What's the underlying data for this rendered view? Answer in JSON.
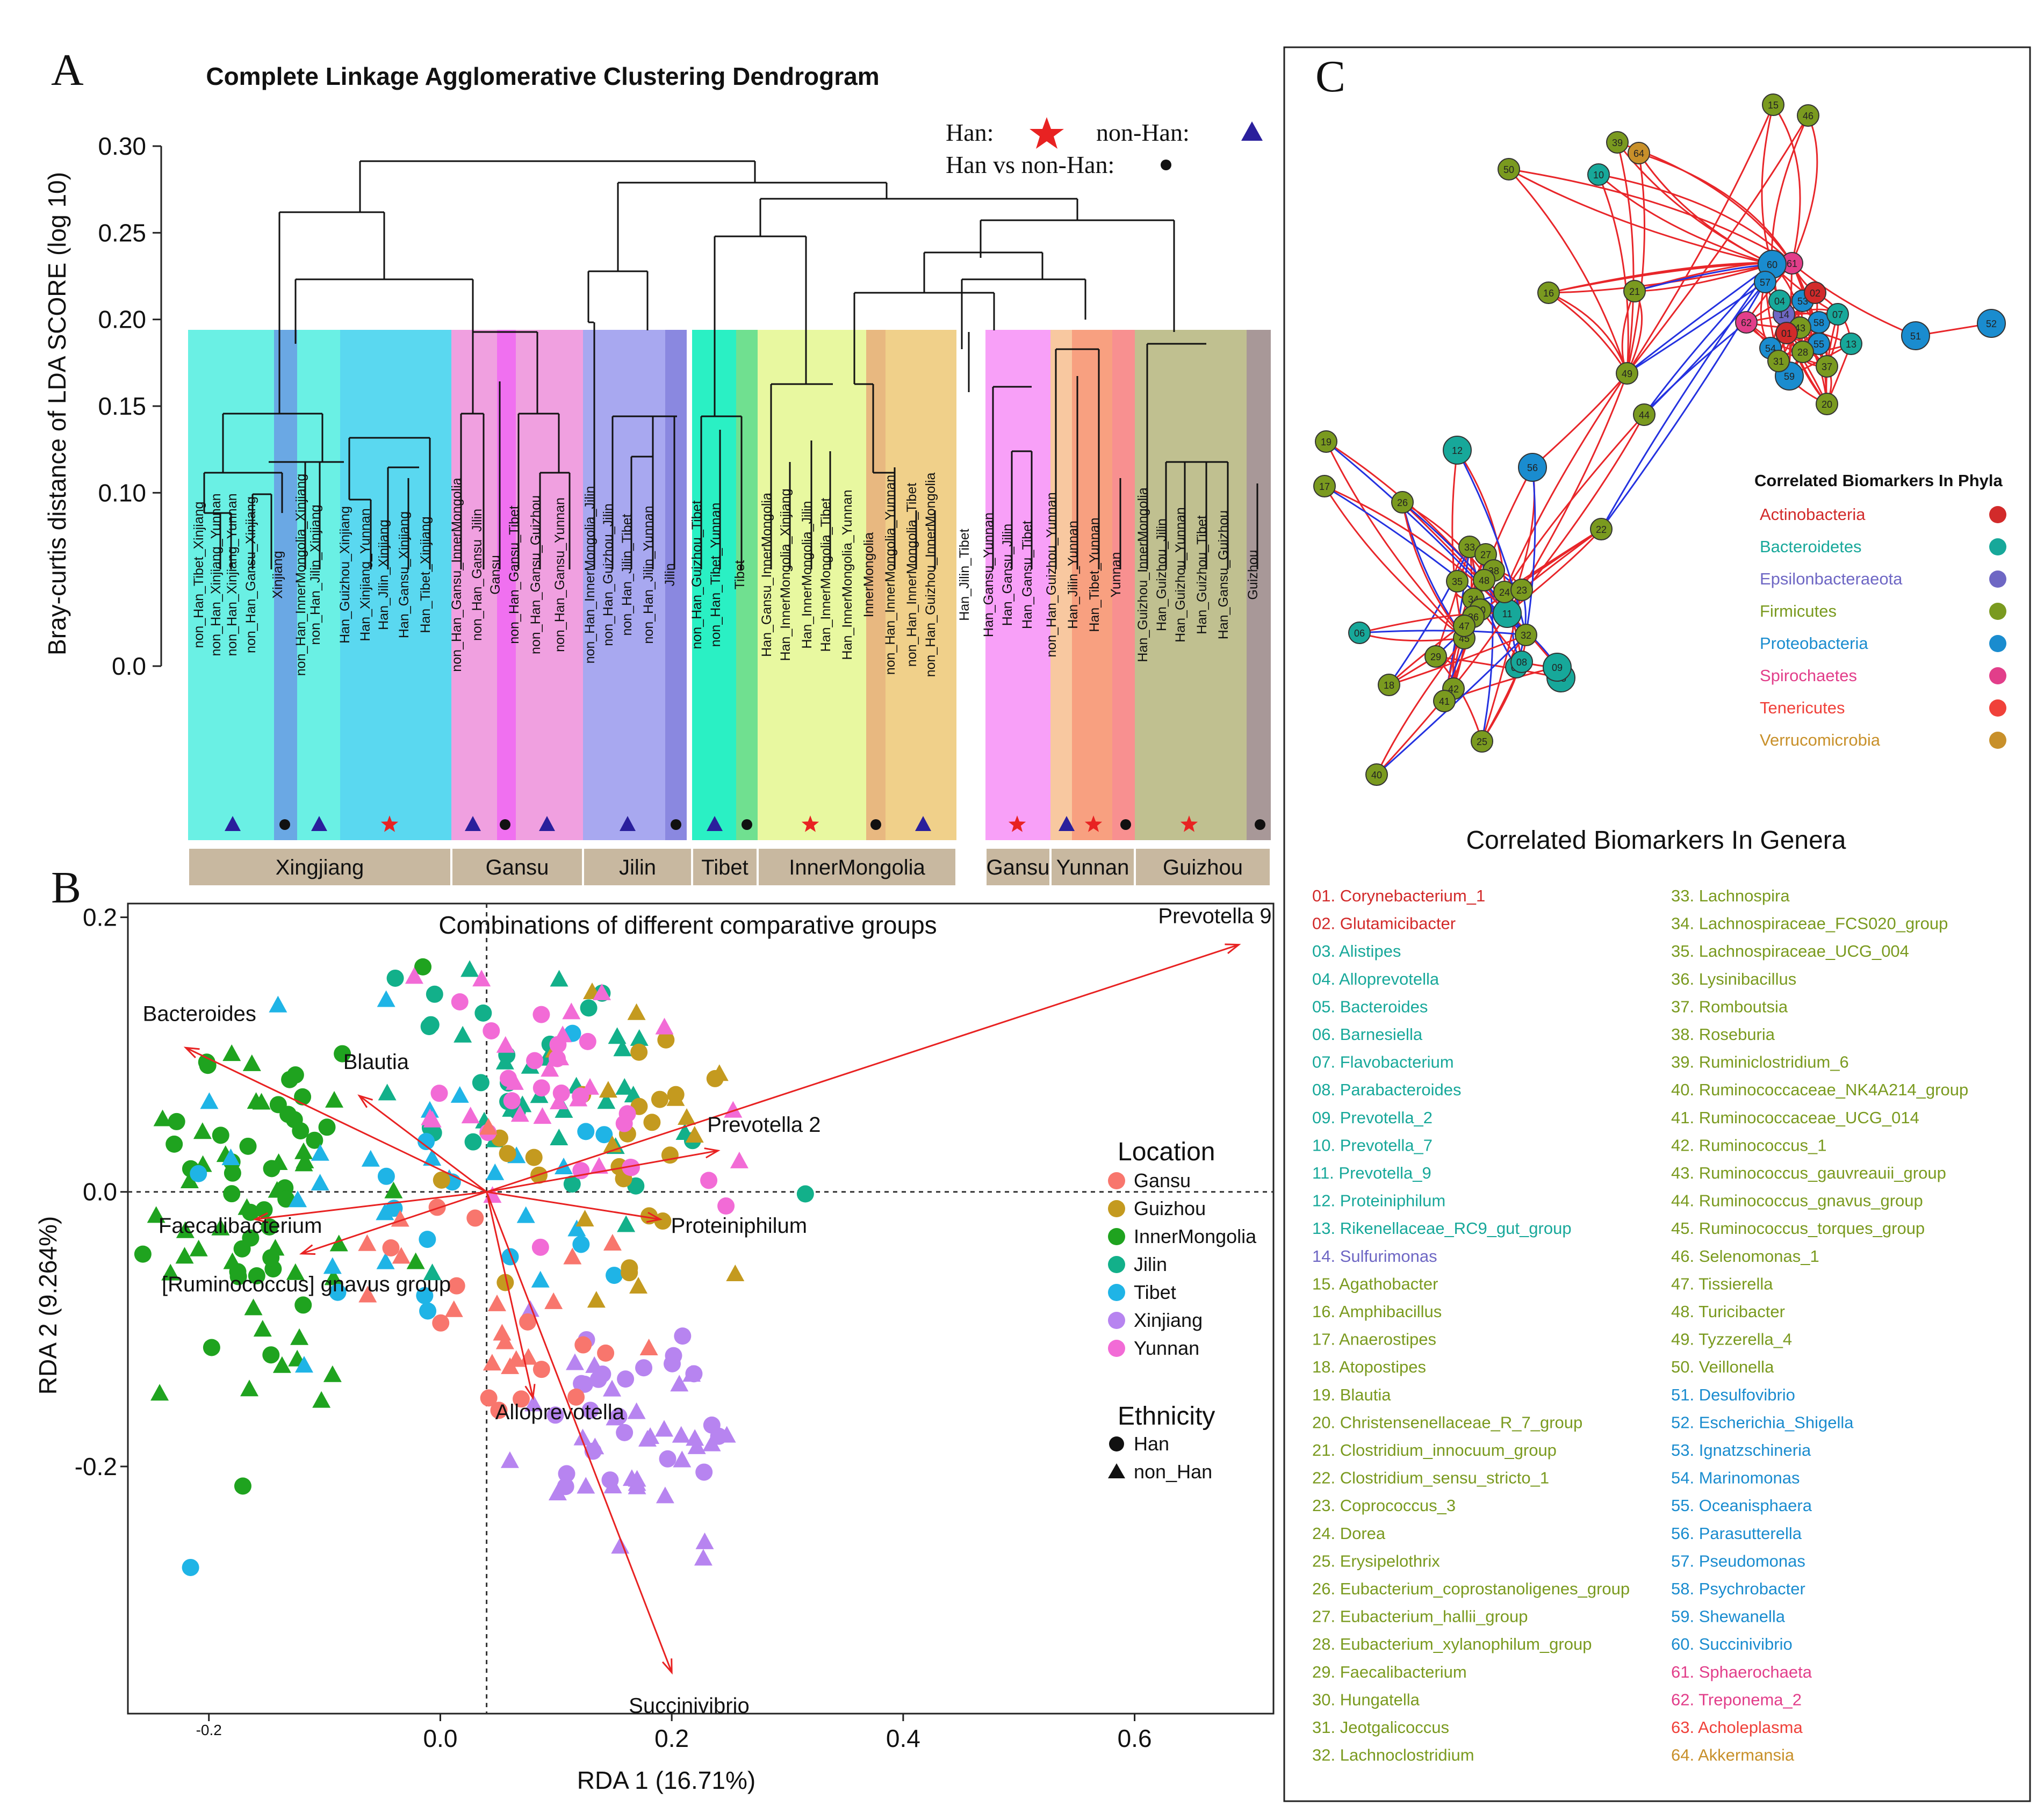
{
  "panelA": {
    "letter": "A",
    "title": "Complete Linkage Agglomerative Clustering Dendrogram",
    "ylabel": "Bray-curtis distance of LDA SCORE (log 10)",
    "yticks": [
      "0.30",
      "0.25",
      "0.20",
      "0.15",
      "0.10",
      "0.0"
    ],
    "legend": {
      "han": "Han:",
      "nonhan": "non-Han:",
      "vs": "Han vs non-Han:"
    },
    "leaves": [
      "non_Han_Tibet_Xinjiang",
      "non_Han_Xinjiang_Yunnan",
      "non_Han_Xinjiang_Yunnan",
      "non_Han_Gansu_Xinjiang",
      "Xinjiang",
      "non_Han_InnerMongolia_Xinjiang",
      "non_Han_Jilin_Xinjiang",
      "Han_Guizhou_Xinjiang",
      "Han_Xinjiang_Yunnan",
      "Han_Jilin_Xinjiang",
      "Han_Gansu_Xinjiang",
      "Han_Tibet_Xinjiang",
      "non_Han_Gansu_InnerMongolia",
      "non_Han_Gansu_Jilin",
      "Gansu",
      "non_Han_Gansu_Tibet",
      "non_Han_Gansu_Guizhou",
      "non_Han_Gansu_Yunnan",
      "non_Han_InnerMongolia_Jilin",
      "non_Han_Guizhou_Jilin",
      "non_Han_Jilin_Tibet",
      "non_Han_Jilin_Yunnan",
      "Jilin",
      "non_Han_Guizhou_Tibet",
      "non_Han_Tibet_Yunnan",
      "Tibet",
      "Han_Gansu_InnerMongolia",
      "Han_InnerMongolia_Xinjiang",
      "Han_InnerMongolia_Jilin",
      "Han_InnerMongolia_Tibet",
      "Han_InnerMongolia_Yunnan",
      "InnerMongolia",
      "non_Han_InnerMongolia_Yunnan",
      "non_Han_InnerMongolia_Tibet",
      "non_Han_Guizhou_InnerMongolia",
      "Han_Jilin_Tibet",
      "Han_Gansu_Yunnan",
      "Han_Gansu_Jilin",
      "Han_Gansu_Tibet",
      "non_Han_Guizhou_Yunnan",
      "Han_Jilin_Yunnan",
      "Han_Tibet_Yunnan",
      "Yunnan",
      "Han_Guizhou_InnerMongolia",
      "Han_Guizhou_Jilin",
      "Han_Guizhou_Yunnan",
      "Han_Guizhou_Tibet",
      "Han_Gansu_Guizhou",
      "Guizhou"
    ],
    "groups": [
      "Xingjiang",
      "Gansu",
      "Jilin",
      "Tibet",
      "InnerMongolia",
      "Gansu",
      "Yunnan",
      "Guizhou"
    ]
  },
  "panelB": {
    "letter": "B",
    "chart_data": {
      "type": "scatter",
      "title": "Combinations of different comparative groups",
      "xlabel": "RDA 1 (16.71%)",
      "ylabel": "RDA 2 (9.264%)",
      "xlim": [
        -0.27,
        0.72
      ],
      "ylim": [
        -0.38,
        0.21
      ],
      "xticks": [
        "-0.2",
        "0.0",
        "0.2",
        "0.4",
        "0.6"
      ],
      "yticks": [
        "0.2",
        "0.0",
        "-0.2"
      ],
      "arrows": [
        {
          "name": "Prevotella 9",
          "x": 0.69,
          "y": 0.18
        },
        {
          "name": "Bacteroides",
          "x": -0.22,
          "y": 0.105
        },
        {
          "name": "Blautia",
          "x": -0.07,
          "y": 0.07
        },
        {
          "name": "Prevotella 2",
          "x": 0.24,
          "y": 0.03
        },
        {
          "name": "Proteiniphilum",
          "x": 0.19,
          "y": -0.02
        },
        {
          "name": "Faecalibacterium",
          "x": -0.16,
          "y": -0.02
        },
        {
          "name": "[Ruminococcus] gnavus group",
          "x": -0.12,
          "y": -0.045
        },
        {
          "name": "Alloprevotella",
          "x": 0.08,
          "y": -0.15
        },
        {
          "name": "Succinivibrio",
          "x": 0.2,
          "y": -0.35
        }
      ],
      "legend_location": {
        "title": "Location",
        "items": [
          {
            "name": "Gansu",
            "color": "#f8766d"
          },
          {
            "name": "Guizhou",
            "color": "#c49a1f"
          },
          {
            "name": "InnerMongolia",
            "color": "#1fa31f"
          },
          {
            "name": "Jilin",
            "color": "#12b08a"
          },
          {
            "name": "Tibet",
            "color": "#1fb4e6"
          },
          {
            "name": "Xinjiang",
            "color": "#b784f0"
          },
          {
            "name": "Yunnan",
            "color": "#f26bd6"
          }
        ]
      },
      "legend_ethnicity": {
        "title": "Ethnicity",
        "items": [
          "Han",
          "non_Han"
        ]
      },
      "clusters": [
        {
          "group": "InnerMongolia",
          "cx": -0.16,
          "cy": 0.0,
          "sx": 0.05,
          "sy": 0.07,
          "n": 80
        },
        {
          "group": "Jilin",
          "cx": 0.1,
          "cy": 0.07,
          "sx": 0.09,
          "sy": 0.06,
          "n": 45
        },
        {
          "group": "Tibet",
          "cx": -0.03,
          "cy": 0.02,
          "sx": 0.12,
          "sy": 0.07,
          "n": 40
        },
        {
          "group": "Guizhou",
          "cx": 0.15,
          "cy": 0.05,
          "sx": 0.06,
          "sy": 0.05,
          "n": 35
        },
        {
          "group": "Yunnan",
          "cx": 0.1,
          "cy": 0.07,
          "sx": 0.06,
          "sy": 0.05,
          "n": 45
        },
        {
          "group": "Xinjiang",
          "cx": 0.17,
          "cy": -0.18,
          "sx": 0.05,
          "sy": 0.04,
          "n": 55
        },
        {
          "group": "Gansu",
          "cx": 0.05,
          "cy": -0.08,
          "sx": 0.07,
          "sy": 0.05,
          "n": 30
        }
      ]
    }
  },
  "panelC": {
    "letter": "C",
    "network_legend": {
      "title": "Correlated Biomarkers In Phyla",
      "items": [
        {
          "name": "Actinobacteria",
          "color": "#d22a2a"
        },
        {
          "name": "Bacteroidetes",
          "color": "#17a89a"
        },
        {
          "name": "Epsilonbacteraeota",
          "color": "#6e67c4"
        },
        {
          "name": "Firmicutes",
          "color": "#7a9a1f"
        },
        {
          "name": "Proteobacteria",
          "color": "#1a8ccf"
        },
        {
          "name": "Spirochaetes",
          "color": "#e23e8a"
        },
        {
          "name": "Tenericutes",
          "color": "#f0413a"
        },
        {
          "name": "Verrucomicrobia",
          "color": "#c8902a"
        }
      ]
    },
    "genera_title": "Correlated Biomarkers In Genera",
    "genera": [
      {
        "t": "01. Corynebacterium_1",
        "c": "#d22a2a"
      },
      {
        "t": "02. Glutamicibacter",
        "c": "#d22a2a"
      },
      {
        "t": "03. Alistipes",
        "c": "#17a89a"
      },
      {
        "t": "04. Alloprevotella",
        "c": "#17a89a"
      },
      {
        "t": "05. Bacteroides",
        "c": "#17a89a"
      },
      {
        "t": "06. Barnesiella",
        "c": "#17a89a"
      },
      {
        "t": "07. Flavobacterium",
        "c": "#17a89a"
      },
      {
        "t": "08. Parabacteroides",
        "c": "#17a89a"
      },
      {
        "t": "09. Prevotella_2",
        "c": "#17a89a"
      },
      {
        "t": "10. Prevotella_7",
        "c": "#17a89a"
      },
      {
        "t": "11. Prevotella_9",
        "c": "#17a89a"
      },
      {
        "t": "12. Proteiniphilum",
        "c": "#17a89a"
      },
      {
        "t": "13. Rikenellaceae_RC9_gut_group",
        "c": "#17a89a"
      },
      {
        "t": "14. Sulfurimonas",
        "c": "#6e67c4"
      },
      {
        "t": "15. Agathobacter",
        "c": "#7a9a1f"
      },
      {
        "t": "16. Amphibacillus",
        "c": "#7a9a1f"
      },
      {
        "t": "17. Anaerostipes",
        "c": "#7a9a1f"
      },
      {
        "t": "18. Atopostipes",
        "c": "#7a9a1f"
      },
      {
        "t": "19. Blautia",
        "c": "#7a9a1f"
      },
      {
        "t": "20. Christensenellaceae_R_7_group",
        "c": "#7a9a1f"
      },
      {
        "t": "21. Clostridium_innocuum_group",
        "c": "#7a9a1f"
      },
      {
        "t": "22. Clostridium_sensu_stricto_1",
        "c": "#7a9a1f"
      },
      {
        "t": "23. Coprococcus_3",
        "c": "#7a9a1f"
      },
      {
        "t": "24. Dorea",
        "c": "#7a9a1f"
      },
      {
        "t": "25. Erysipelothrix",
        "c": "#7a9a1f"
      },
      {
        "t": "26. Eubacterium_coprostanoligenes_group",
        "c": "#7a9a1f"
      },
      {
        "t": "27. Eubacterium_hallii_group",
        "c": "#7a9a1f"
      },
      {
        "t": "28. Eubacterium_xylanophilum_group",
        "c": "#7a9a1f"
      },
      {
        "t": "29. Faecalibacterium",
        "c": "#7a9a1f"
      },
      {
        "t": "30. Hungatella",
        "c": "#7a9a1f"
      },
      {
        "t": "31. Jeotgalicoccus",
        "c": "#7a9a1f"
      },
      {
        "t": "32. Lachnoclostridium",
        "c": "#7a9a1f"
      },
      {
        "t": "33. Lachnospira",
        "c": "#7a9a1f"
      },
      {
        "t": "34. Lachnospiraceae_FCS020_group",
        "c": "#7a9a1f"
      },
      {
        "t": "35. Lachnospiraceae_UCG_004",
        "c": "#7a9a1f"
      },
      {
        "t": "36. Lysinibacillus",
        "c": "#7a9a1f"
      },
      {
        "t": "37. Romboutsia",
        "c": "#7a9a1f"
      },
      {
        "t": "38. Roseburia",
        "c": "#7a9a1f"
      },
      {
        "t": "39. Ruminiclostridium_6",
        "c": "#7a9a1f"
      },
      {
        "t": "40. Ruminococcaceae_NK4A214_group",
        "c": "#7a9a1f"
      },
      {
        "t": "41. Ruminococcaceae_UCG_014",
        "c": "#7a9a1f"
      },
      {
        "t": "42. Ruminococcus_1",
        "c": "#7a9a1f"
      },
      {
        "t": "43. Ruminococcus_gauvreauii_group",
        "c": "#7a9a1f"
      },
      {
        "t": "44. Ruminococcus_gnavus_group",
        "c": "#7a9a1f"
      },
      {
        "t": "45. Ruminococcus_torques_group",
        "c": "#7a9a1f"
      },
      {
        "t": "46. Selenomonas_1",
        "c": "#7a9a1f"
      },
      {
        "t": "47. Tissierella",
        "c": "#7a9a1f"
      },
      {
        "t": "48. Turicibacter",
        "c": "#7a9a1f"
      },
      {
        "t": "49. Tyzzerella_4",
        "c": "#7a9a1f"
      },
      {
        "t": "50. Veillonella",
        "c": "#7a9a1f"
      },
      {
        "t": "51. Desulfovibrio",
        "c": "#1a8ccf"
      },
      {
        "t": "52. Escherichia_Shigella",
        "c": "#1a8ccf"
      },
      {
        "t": "53. Ignatzschineria",
        "c": "#1a8ccf"
      },
      {
        "t": "54. Marinomonas",
        "c": "#1a8ccf"
      },
      {
        "t": "55. Oceanisphaera",
        "c": "#1a8ccf"
      },
      {
        "t": "56. Parasutterella",
        "c": "#1a8ccf"
      },
      {
        "t": "57. Pseudomonas",
        "c": "#1a8ccf"
      },
      {
        "t": "58. Psychrobacter",
        "c": "#1a8ccf"
      },
      {
        "t": "59. Shewanella",
        "c": "#1a8ccf"
      },
      {
        "t": "60. Succinivibrio",
        "c": "#1a8ccf"
      },
      {
        "t": "61. Sphaerochaeta",
        "c": "#e23e8a"
      },
      {
        "t": "62. Treponema_2",
        "c": "#e23e8a"
      },
      {
        "t": "63. Acholeplasma",
        "c": "#f0413a"
      },
      {
        "t": "64. Akkermansia",
        "c": "#c8902a"
      }
    ],
    "nodes": [
      {
        "id": "15",
        "p": "F"
      },
      {
        "id": "46",
        "p": "F"
      },
      {
        "id": "39",
        "p": "F"
      },
      {
        "id": "64",
        "p": "V"
      },
      {
        "id": "50",
        "p": "F"
      },
      {
        "id": "10",
        "p": "B"
      },
      {
        "id": "16",
        "p": "F"
      },
      {
        "id": "21",
        "p": "F"
      },
      {
        "id": "61",
        "p": "S"
      },
      {
        "id": "60",
        "p": "P"
      },
      {
        "id": "52",
        "p": "P"
      },
      {
        "id": "51",
        "p": "P"
      },
      {
        "id": "49",
        "p": "F"
      },
      {
        "id": "44",
        "p": "F"
      },
      {
        "id": "56",
        "p": "P"
      },
      {
        "id": "12",
        "p": "B"
      },
      {
        "id": "19",
        "p": "F"
      },
      {
        "id": "17",
        "p": "F"
      },
      {
        "id": "22",
        "p": "F"
      },
      {
        "id": "06",
        "p": "B"
      },
      {
        "id": "26",
        "p": "F"
      },
      {
        "id": "40",
        "p": "F"
      },
      {
        "id": "11",
        "p": "B"
      },
      {
        "id": "03",
        "p": "B"
      },
      {
        "id": "05",
        "p": "B"
      },
      {
        "id": "09",
        "p": "B"
      },
      {
        "id": "08",
        "p": "B"
      },
      {
        "id": "42",
        "p": "F"
      },
      {
        "id": "45",
        "p": "F"
      },
      {
        "id": "33",
        "p": "F"
      },
      {
        "id": "27",
        "p": "F"
      },
      {
        "id": "32",
        "p": "F"
      },
      {
        "id": "29",
        "p": "F"
      },
      {
        "id": "24",
        "p": "F"
      },
      {
        "id": "38",
        "p": "F"
      },
      {
        "id": "23",
        "p": "F"
      },
      {
        "id": "41",
        "p": "F"
      },
      {
        "id": "34",
        "p": "F"
      },
      {
        "id": "30",
        "p": "F"
      },
      {
        "id": "36",
        "p": "F"
      },
      {
        "id": "35",
        "p": "F"
      },
      {
        "id": "18",
        "p": "F"
      },
      {
        "id": "25",
        "p": "F"
      },
      {
        "id": "47",
        "p": "F"
      },
      {
        "id": "48",
        "p": "F"
      },
      {
        "id": "57",
        "p": "P"
      },
      {
        "id": "53",
        "p": "P"
      },
      {
        "id": "58",
        "p": "P"
      },
      {
        "id": "55",
        "p": "P"
      },
      {
        "id": "59",
        "p": "P"
      },
      {
        "id": "54",
        "p": "P"
      },
      {
        "id": "62",
        "p": "S"
      },
      {
        "id": "14",
        "p": "E"
      },
      {
        "id": "28",
        "p": "F"
      },
      {
        "id": "31",
        "p": "F"
      },
      {
        "id": "37",
        "p": "F"
      },
      {
        "id": "43",
        "p": "F"
      },
      {
        "id": "01",
        "p": "A"
      },
      {
        "id": "02",
        "p": "A"
      },
      {
        "id": "04",
        "p": "B"
      },
      {
        "id": "07",
        "p": "B"
      },
      {
        "id": "13",
        "p": "B"
      },
      {
        "id": "20",
        "p": "F"
      }
    ]
  }
}
